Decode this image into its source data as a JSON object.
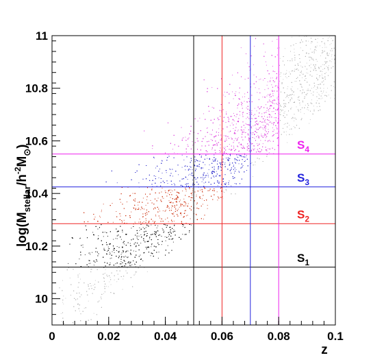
{
  "chart_data": {
    "type": "scatter",
    "title": "",
    "xlabel": "z",
    "ylabel": {
      "prefix": "log(M",
      "sub1": "stellar",
      "mid": "/h",
      "sup": "-2",
      "mid2": "M",
      "sub2": "⊙",
      "suffix": ")"
    },
    "xlim": [
      0,
      0.1
    ],
    "ylim": [
      9.9,
      11.0
    ],
    "x_ticks": [
      {
        "v": 0,
        "label": "0"
      },
      {
        "v": 0.02,
        "label": "0.02"
      },
      {
        "v": 0.04,
        "label": "0.04"
      },
      {
        "v": 0.06,
        "label": "0.06"
      },
      {
        "v": 0.08,
        "label": "0.08"
      },
      {
        "v": 0.1,
        "label": "0.1"
      }
    ],
    "y_ticks": [
      {
        "v": 10.0,
        "label": "10"
      },
      {
        "v": 10.2,
        "label": "10.2"
      },
      {
        "v": 10.4,
        "label": "10.4"
      },
      {
        "v": 10.6,
        "label": "10.6"
      },
      {
        "v": 10.8,
        "label": "10.8"
      },
      {
        "v": 11.0,
        "label": "11"
      }
    ],
    "grid": false,
    "samples": [
      {
        "name": "S1",
        "letter": "S",
        "sub": "1",
        "color": "#000000",
        "z_max": 0.05,
        "mass_min": 10.12,
        "label_y": 10.14
      },
      {
        "name": "S2",
        "letter": "S",
        "sub": "2",
        "color": "#ee2222",
        "z_max": 0.06,
        "mass_min": 10.285,
        "label_y": 10.305
      },
      {
        "name": "S3",
        "letter": "S",
        "sub": "3",
        "color": "#2222dd",
        "z_max": 0.07,
        "mass_min": 10.425,
        "label_y": 10.445
      },
      {
        "name": "S4",
        "letter": "S",
        "sub": "4",
        "color": "#ee22ee",
        "z_max": 0.08,
        "mass_min": 10.55,
        "label_y": 10.57
      }
    ],
    "point_colors": {
      "background": "#b4b4b4",
      "S1": "#111111",
      "S2": "#cc3311",
      "S3": "#3333cc",
      "S4": "#dd44dd"
    }
  }
}
